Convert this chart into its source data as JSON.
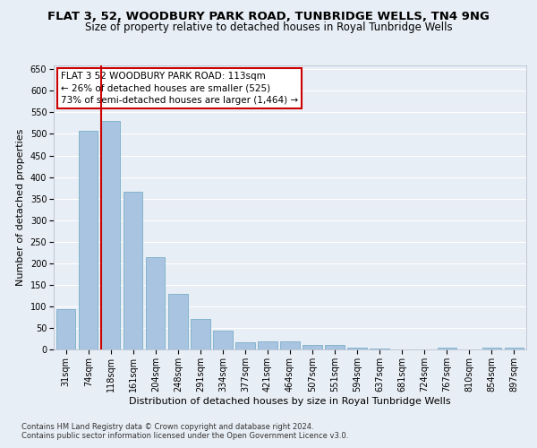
{
  "title": "FLAT 3, 52, WOODBURY PARK ROAD, TUNBRIDGE WELLS, TN4 9NG",
  "subtitle": "Size of property relative to detached houses in Royal Tunbridge Wells",
  "xlabel": "Distribution of detached houses by size in Royal Tunbridge Wells",
  "ylabel": "Number of detached properties",
  "footnote1": "Contains HM Land Registry data © Crown copyright and database right 2024.",
  "footnote2": "Contains public sector information licensed under the Open Government Licence v3.0.",
  "categories": [
    "31sqm",
    "74sqm",
    "118sqm",
    "161sqm",
    "204sqm",
    "248sqm",
    "291sqm",
    "334sqm",
    "377sqm",
    "421sqm",
    "464sqm",
    "507sqm",
    "551sqm",
    "594sqm",
    "637sqm",
    "681sqm",
    "724sqm",
    "767sqm",
    "810sqm",
    "854sqm",
    "897sqm"
  ],
  "values": [
    93,
    507,
    530,
    365,
    215,
    128,
    70,
    43,
    16,
    19,
    19,
    10,
    10,
    4,
    2,
    0,
    0,
    5,
    0,
    5,
    5
  ],
  "bar_color": "#a8c4e0",
  "bar_edge_color": "#7aafc8",
  "vline_color": "#cc0000",
  "annotation_line1": "FLAT 3 52 WOODBURY PARK ROAD: 113sqm",
  "annotation_line2": "← 26% of detached houses are smaller (525)",
  "annotation_line3": "73% of semi-detached houses are larger (1,464) →",
  "annotation_box_color": "#ffffff",
  "annotation_box_edgecolor": "#cc0000",
  "ylim": [
    0,
    660
  ],
  "bg_color": "#e8eef5",
  "grid_color": "#ffffff",
  "title_fontsize": 9.5,
  "subtitle_fontsize": 8.5,
  "ylabel_fontsize": 8,
  "xlabel_fontsize": 8,
  "tick_fontsize": 7,
  "annot_fontsize": 7.5,
  "footnote_fontsize": 6
}
